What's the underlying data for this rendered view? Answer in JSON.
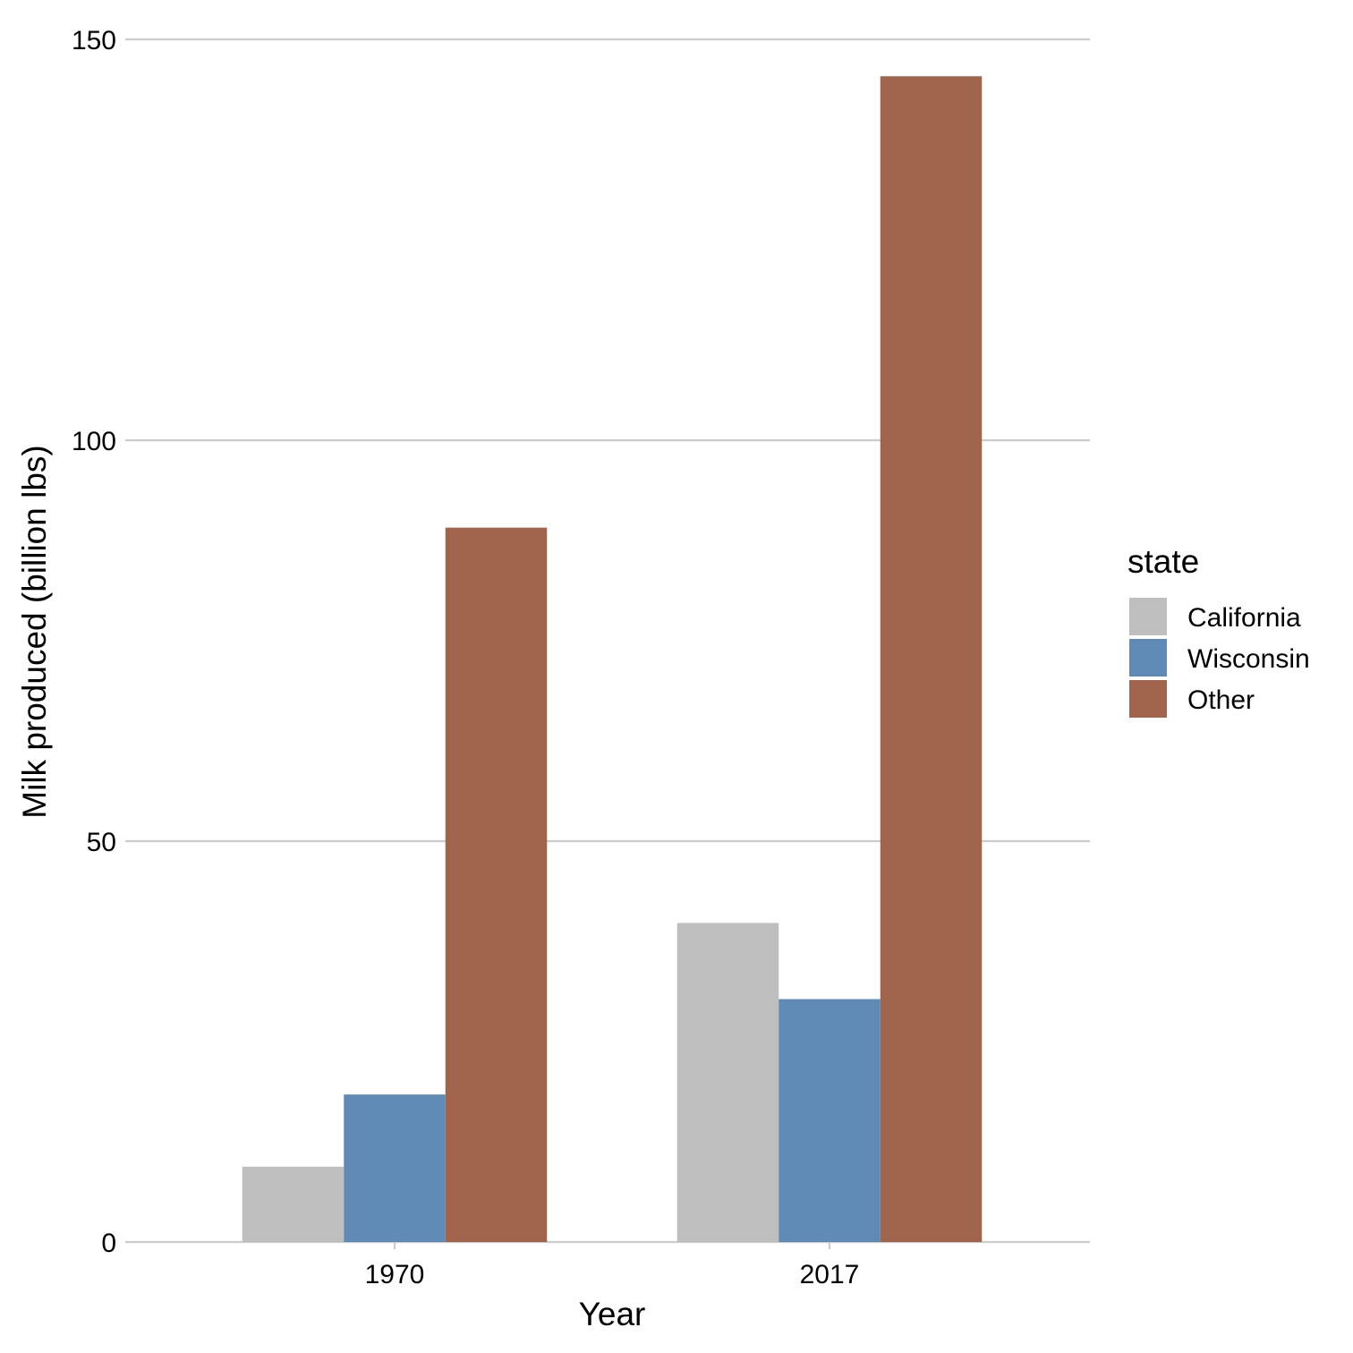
{
  "chart_data": {
    "type": "bar",
    "categories": [
      "1970",
      "2017"
    ],
    "series": [
      {
        "name": "California",
        "color": "#bebebe",
        "values": [
          9.4,
          39.8
        ]
      },
      {
        "name": "Wisconsin",
        "color": "#5f8ab6",
        "values": [
          18.4,
          30.3
        ]
      },
      {
        "name": "Other",
        "color": "#a0644d",
        "values": [
          89.1,
          145.4
        ]
      }
    ],
    "xlabel": "Year",
    "ylabel": "Milk produced (billion lbs)",
    "yticks": [
      0,
      50,
      100,
      150
    ],
    "ylim": [
      0,
      150
    ],
    "grid": "horizontal",
    "legend": {
      "title": "state",
      "placement": "right"
    }
  }
}
